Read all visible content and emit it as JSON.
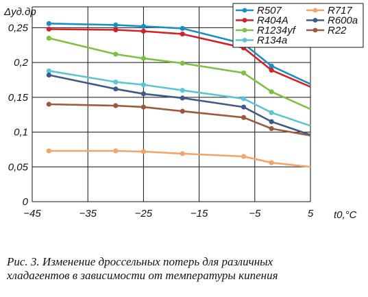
{
  "chart_data": {
    "type": "line",
    "xlabel": "t0,°C",
    "ylabel": "Δуд.др",
    "xlim": [
      -45,
      5
    ],
    "ylim": [
      0,
      0.28
    ],
    "xticks": [
      -45,
      -35,
      -25,
      -15,
      -5,
      5
    ],
    "xtick_labels": [
      "−45",
      "−35",
      "−25",
      "−15",
      "−5",
      "5"
    ],
    "yticks": [
      0,
      0.05,
      0.1,
      0.15,
      0.2,
      0.25
    ],
    "ytick_labels": [
      "0",
      "0,05",
      "0,1",
      "0,15",
      "0,2",
      "0,25"
    ],
    "grid": true,
    "legend_position": "top-right",
    "x": [
      -42,
      -30,
      -25,
      -18,
      -7,
      -2,
      5
    ],
    "series": [
      {
        "name": "R507",
        "color": "#1a8fc6",
        "values": [
          0.256,
          0.254,
          0.252,
          0.249,
          0.227,
          0.195,
          0.169
        ]
      },
      {
        "name": "R404A",
        "color": "#d62027",
        "values": [
          0.248,
          0.247,
          0.245,
          0.241,
          0.221,
          0.189,
          0.165
        ]
      },
      {
        "name": "R1234yf",
        "color": "#7cc242",
        "values": [
          0.235,
          0.212,
          0.206,
          0.199,
          0.185,
          0.158,
          0.133
        ]
      },
      {
        "name": "R134a",
        "color": "#5bc5d6",
        "values": [
          0.188,
          0.172,
          0.168,
          0.16,
          0.148,
          0.128,
          0.109
        ]
      },
      {
        "name": "R600a",
        "color": "#3f5a8a",
        "values": [
          0.182,
          0.162,
          0.155,
          0.149,
          0.136,
          0.115,
          0.096
        ]
      },
      {
        "name": "R22",
        "color": "#9c5a3c",
        "values": [
          0.14,
          0.138,
          0.136,
          0.13,
          0.121,
          0.105,
          0.095
        ]
      },
      {
        "name": "R717",
        "color": "#f4a46a",
        "values": [
          0.073,
          0.073,
          0.072,
          0.069,
          0.065,
          0.056,
          0.05
        ]
      }
    ]
  },
  "caption": {
    "line1": "Рис. 3. Изменение дроссельных потерь для различных",
    "line2": "хладагентов в зависимости от температуры кипения"
  }
}
